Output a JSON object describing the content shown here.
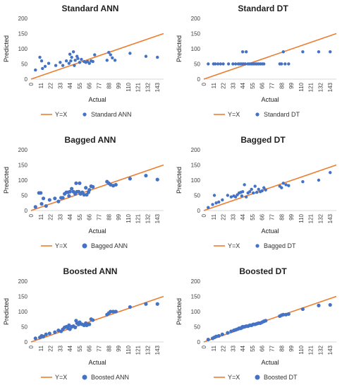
{
  "chart_data": [
    {
      "type": "scatter",
      "title": "Standard ANN",
      "xlabel": "Actual",
      "ylabel": "Predicted",
      "xlim": [
        0,
        150
      ],
      "ylim": [
        0,
        200
      ],
      "x_ticks": [
        0,
        11,
        22,
        33,
        44,
        55,
        66,
        77,
        88,
        99,
        110,
        121,
        132,
        143
      ],
      "y_ticks": [
        0,
        50,
        100,
        150,
        200
      ],
      "reference_line": {
        "name": "Y=X",
        "color": "#ED7D31"
      },
      "series": [
        {
          "name": "Standard ANN",
          "color": "#4472C4",
          "marker": "small",
          "points": [
            [
              5,
              30
            ],
            [
              10,
              72
            ],
            [
              12,
              60
            ],
            [
              13,
              35
            ],
            [
              16,
              42
            ],
            [
              20,
              52
            ],
            [
              28,
              45
            ],
            [
              33,
              55
            ],
            [
              36,
              45
            ],
            [
              40,
              60
            ],
            [
              43,
              52
            ],
            [
              44,
              82
            ],
            [
              45,
              60
            ],
            [
              46,
              72
            ],
            [
              48,
              90
            ],
            [
              49,
              45
            ],
            [
              50,
              62
            ],
            [
              52,
              75
            ],
            [
              53,
              68
            ],
            [
              55,
              55
            ],
            [
              57,
              65
            ],
            [
              60,
              58
            ],
            [
              62,
              55
            ],
            [
              64,
              58
            ],
            [
              66,
              52
            ],
            [
              68,
              60
            ],
            [
              70,
              58
            ],
            [
              72,
              80
            ],
            [
              86,
              62
            ],
            [
              88,
              88
            ],
            [
              90,
              80
            ],
            [
              92,
              70
            ],
            [
              95,
              62
            ],
            [
              112,
              85
            ],
            [
              130,
              75
            ],
            [
              143,
              72
            ]
          ]
        }
      ]
    },
    {
      "type": "scatter",
      "title": "Standard DT",
      "xlabel": "Actual",
      "ylabel": "Predicted",
      "xlim": [
        0,
        150
      ],
      "ylim": [
        0,
        200
      ],
      "x_ticks": [
        0,
        11,
        22,
        33,
        44,
        55,
        66,
        77,
        88,
        99,
        110,
        121,
        132,
        143
      ],
      "y_ticks": [
        0,
        50,
        100,
        150,
        200
      ],
      "reference_line": {
        "name": "Y=X",
        "color": "#ED7D31"
      },
      "series": [
        {
          "name": "Standard DT",
          "color": "#4472C4",
          "marker": "small",
          "points": [
            [
              5,
              50
            ],
            [
              11,
              50
            ],
            [
              13,
              50
            ],
            [
              16,
              50
            ],
            [
              19,
              50
            ],
            [
              22,
              50
            ],
            [
              28,
              50
            ],
            [
              33,
              50
            ],
            [
              36,
              50
            ],
            [
              39,
              50
            ],
            [
              41,
              50
            ],
            [
              43,
              50
            ],
            [
              44,
              90
            ],
            [
              45,
              50
            ],
            [
              47,
              50
            ],
            [
              48,
              90
            ],
            [
              50,
              50
            ],
            [
              52,
              50
            ],
            [
              54,
              50
            ],
            [
              56,
              50
            ],
            [
              58,
              50
            ],
            [
              60,
              50
            ],
            [
              62,
              50
            ],
            [
              64,
              50
            ],
            [
              66,
              50
            ],
            [
              68,
              50
            ],
            [
              86,
              50
            ],
            [
              88,
              50
            ],
            [
              90,
              90
            ],
            [
              92,
              50
            ],
            [
              96,
              50
            ],
            [
              112,
              90
            ],
            [
              130,
              90
            ],
            [
              143,
              90
            ]
          ]
        }
      ]
    },
    {
      "type": "scatter",
      "title": "Bagged ANN",
      "xlabel": "Actual",
      "ylabel": "Predicted",
      "xlim": [
        0,
        150
      ],
      "ylim": [
        0,
        200
      ],
      "x_ticks": [
        0,
        11,
        22,
        33,
        44,
        55,
        66,
        77,
        88,
        99,
        110,
        121,
        132,
        143
      ],
      "y_ticks": [
        0,
        50,
        100,
        150,
        200
      ],
      "reference_line": {
        "name": "Y=X",
        "color": "#ED7D31"
      },
      "series": [
        {
          "name": "Bagged ANN",
          "color": "#4472C4",
          "marker": "large",
          "points": [
            [
              5,
              12
            ],
            [
              9,
              58
            ],
            [
              11,
              58
            ],
            [
              12,
              22
            ],
            [
              14,
              40
            ],
            [
              17,
              15
            ],
            [
              21,
              35
            ],
            [
              27,
              40
            ],
            [
              31,
              30
            ],
            [
              34,
              42
            ],
            [
              36,
              42
            ],
            [
              38,
              55
            ],
            [
              40,
              60
            ],
            [
              42,
              60
            ],
            [
              43,
              48
            ],
            [
              44,
              62
            ],
            [
              46,
              72
            ],
            [
              48,
              62
            ],
            [
              50,
              55
            ],
            [
              51,
              90
            ],
            [
              52,
              62
            ],
            [
              54,
              62
            ],
            [
              55,
              90
            ],
            [
              56,
              55
            ],
            [
              58,
              60
            ],
            [
              60,
              52
            ],
            [
              62,
              75
            ],
            [
              63,
              52
            ],
            [
              65,
              60
            ],
            [
              66,
              68
            ],
            [
              68,
              80
            ],
            [
              70,
              78
            ],
            [
              86,
              95
            ],
            [
              88,
              90
            ],
            [
              90,
              85
            ],
            [
              93,
              82
            ],
            [
              96,
              85
            ],
            [
              112,
              105
            ],
            [
              130,
              115
            ],
            [
              143,
              102
            ]
          ]
        }
      ]
    },
    {
      "type": "scatter",
      "title": "Bagged DT",
      "xlabel": "Actual",
      "ylabel": "Predicted",
      "xlim": [
        0,
        150
      ],
      "ylim": [
        0,
        200
      ],
      "x_ticks": [
        0,
        11,
        22,
        33,
        44,
        55,
        66,
        77,
        88,
        99,
        110,
        121,
        132,
        143
      ],
      "y_ticks": [
        0,
        50,
        100,
        150,
        200
      ],
      "reference_line": {
        "name": "Y=X",
        "color": "#ED7D31"
      },
      "series": [
        {
          "name": "Bagged DT",
          "color": "#4472C4",
          "marker": "small",
          "points": [
            [
              5,
              10
            ],
            [
              10,
              20
            ],
            [
              12,
              50
            ],
            [
              14,
              25
            ],
            [
              17,
              28
            ],
            [
              21,
              35
            ],
            [
              27,
              50
            ],
            [
              31,
              45
            ],
            [
              34,
              48
            ],
            [
              36,
              45
            ],
            [
              38,
              52
            ],
            [
              40,
              58
            ],
            [
              42,
              60
            ],
            [
              43,
              48
            ],
            [
              44,
              62
            ],
            [
              46,
              85
            ],
            [
              48,
              45
            ],
            [
              50,
              58
            ],
            [
              52,
              62
            ],
            [
              54,
              70
            ],
            [
              56,
              58
            ],
            [
              58,
              80
            ],
            [
              60,
              60
            ],
            [
              62,
              70
            ],
            [
              64,
              62
            ],
            [
              66,
              65
            ],
            [
              68,
              75
            ],
            [
              70,
              68
            ],
            [
              86,
              80
            ],
            [
              88,
              75
            ],
            [
              90,
              90
            ],
            [
              93,
              85
            ],
            [
              96,
              82
            ],
            [
              112,
              95
            ],
            [
              130,
              100
            ],
            [
              143,
              125
            ]
          ]
        }
      ]
    },
    {
      "type": "scatter",
      "title": "Boosted ANN",
      "xlabel": "Actual",
      "ylabel": "Predicted",
      "xlim": [
        0,
        150
      ],
      "ylim": [
        0,
        200
      ],
      "x_ticks": [
        0,
        11,
        22,
        33,
        44,
        55,
        66,
        77,
        88,
        99,
        110,
        121,
        132,
        143
      ],
      "y_ticks": [
        0,
        50,
        100,
        150,
        200
      ],
      "reference_line": {
        "name": "Y=X",
        "color": "#ED7D31"
      },
      "series": [
        {
          "name": "Boosted ANN",
          "color": "#4472C4",
          "marker": "large",
          "points": [
            [
              5,
              12
            ],
            [
              10,
              15
            ],
            [
              12,
              20
            ],
            [
              14,
              18
            ],
            [
              17,
              25
            ],
            [
              21,
              28
            ],
            [
              27,
              32
            ],
            [
              31,
              38
            ],
            [
              34,
              35
            ],
            [
              36,
              42
            ],
            [
              38,
              48
            ],
            [
              40,
              50
            ],
            [
              42,
              45
            ],
            [
              43,
              55
            ],
            [
              44,
              42
            ],
            [
              46,
              50
            ],
            [
              48,
              52
            ],
            [
              50,
              48
            ],
            [
              51,
              70
            ],
            [
              52,
              62
            ],
            [
              54,
              58
            ],
            [
              55,
              65
            ],
            [
              56,
              60
            ],
            [
              58,
              58
            ],
            [
              60,
              55
            ],
            [
              62,
              62
            ],
            [
              63,
              55
            ],
            [
              65,
              58
            ],
            [
              66,
              58
            ],
            [
              68,
              75
            ],
            [
              70,
              72
            ],
            [
              86,
              90
            ],
            [
              88,
              95
            ],
            [
              90,
              100
            ],
            [
              93,
              100
            ],
            [
              96,
              100
            ],
            [
              112,
              115
            ],
            [
              130,
              125
            ],
            [
              143,
              125
            ]
          ]
        }
      ]
    },
    {
      "type": "scatter",
      "title": "Boosted DT",
      "xlabel": "Actual",
      "ylabel": "Predicted",
      "xlim": [
        0,
        150
      ],
      "ylim": [
        0,
        200
      ],
      "x_ticks": [
        0,
        11,
        22,
        33,
        44,
        55,
        66,
        77,
        88,
        99,
        110,
        121,
        132,
        143
      ],
      "y_ticks": [
        0,
        50,
        100,
        150,
        200
      ],
      "reference_line": {
        "name": "Y=X",
        "color": "#ED7D31"
      },
      "series": [
        {
          "name": "Boosted DT",
          "color": "#4472C4",
          "marker": "large",
          "points": [
            [
              5,
              8
            ],
            [
              10,
              12
            ],
            [
              12,
              15
            ],
            [
              14,
              18
            ],
            [
              17,
              20
            ],
            [
              21,
              25
            ],
            [
              27,
              30
            ],
            [
              31,
              35
            ],
            [
              34,
              38
            ],
            [
              36,
              40
            ],
            [
              38,
              42
            ],
            [
              40,
              45
            ],
            [
              42,
              45
            ],
            [
              43,
              48
            ],
            [
              44,
              50
            ],
            [
              46,
              50
            ],
            [
              48,
              52
            ],
            [
              50,
              52
            ],
            [
              52,
              55
            ],
            [
              54,
              55
            ],
            [
              56,
              58
            ],
            [
              58,
              58
            ],
            [
              60,
              60
            ],
            [
              62,
              62
            ],
            [
              64,
              62
            ],
            [
              66,
              65
            ],
            [
              68,
              68
            ],
            [
              70,
              70
            ],
            [
              86,
              85
            ],
            [
              88,
              88
            ],
            [
              90,
              90
            ],
            [
              93,
              90
            ],
            [
              96,
              92
            ],
            [
              112,
              108
            ],
            [
              130,
              120
            ],
            [
              143,
              122
            ]
          ]
        }
      ]
    }
  ]
}
